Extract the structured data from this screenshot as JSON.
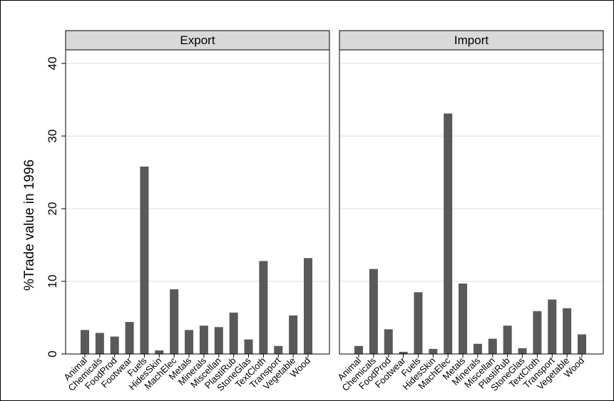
{
  "chart_data": {
    "type": "bar",
    "ylabel": "%Trade value in 1996",
    "ylim": [
      0,
      40
    ],
    "yticks": [
      0,
      10,
      20,
      30,
      40
    ],
    "grid": true,
    "bar_color": "#595959",
    "header_color": "#d9d9d9",
    "gridline_color": "#dddddd",
    "categories": [
      "Animal",
      "Chemicals",
      "FoodProd",
      "Footwear",
      "Fuels",
      "HidesSkin",
      "MachElec",
      "Metals",
      "Minerals",
      "Miscellan",
      "PlastiRub",
      "StoneGlas",
      "TextCloth",
      "Transport",
      "Vegetable",
      "Wood"
    ],
    "panels": [
      {
        "name": "Export",
        "values": [
          3.3,
          2.9,
          2.4,
          4.4,
          25.8,
          0.5,
          8.9,
          3.3,
          3.9,
          3.7,
          5.7,
          2.0,
          12.8,
          1.1,
          5.3,
          13.2
        ]
      },
      {
        "name": "Import",
        "values": [
          1.1,
          11.7,
          3.4,
          0.3,
          8.5,
          0.7,
          33.1,
          9.7,
          1.4,
          2.1,
          3.9,
          0.8,
          5.9,
          7.5,
          6.3,
          2.7
        ]
      }
    ]
  }
}
